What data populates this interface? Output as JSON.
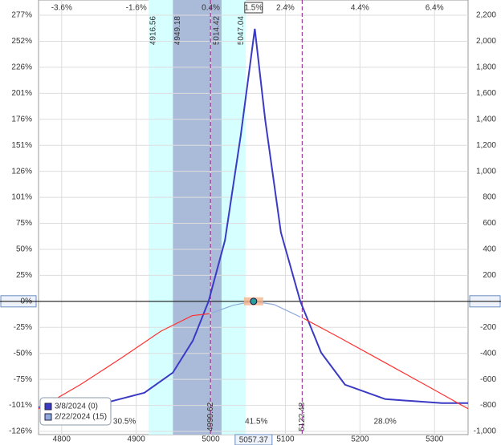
{
  "chart_data": {
    "type": "line",
    "xlim": [
      4769,
      5345
    ],
    "xticks": [
      4800,
      4900,
      5000,
      5100,
      5200,
      5300
    ],
    "top_ticks": [
      {
        "value": 4800,
        "label": "-3.6%"
      },
      {
        "value": 4900,
        "label": "-1.6%"
      },
      {
        "value": 5000,
        "label": "0.4%"
      },
      {
        "value": 5100,
        "label": "2.4%"
      },
      {
        "value": 5200,
        "label": "4.4%"
      },
      {
        "value": 5300,
        "label": "6.4%"
      }
    ],
    "ylim": [
      -1000,
      2200
    ],
    "yticks": [
      {
        "value": 2200,
        "label": "2,200"
      },
      {
        "value": 2000,
        "label": "2,000"
      },
      {
        "value": 1800,
        "label": "1,800"
      },
      {
        "value": 1600,
        "label": "1,600"
      },
      {
        "value": 1400,
        "label": "1,400"
      },
      {
        "value": 1200,
        "label": "1,200"
      },
      {
        "value": 1000,
        "label": "1,000"
      },
      800,
      600,
      400,
      200,
      0,
      -200,
      -400,
      -600,
      -800,
      {
        "value": -1000,
        "label": "-1,000"
      }
    ],
    "pct_ticks": [
      {
        "value": 2200,
        "label": "277%"
      },
      {
        "value": 2000,
        "label": "252%"
      },
      {
        "value": 1800,
        "label": "226%"
      },
      {
        "value": 1600,
        "label": "201%"
      },
      {
        "value": 1400,
        "label": "176%"
      },
      {
        "value": 1200,
        "label": "151%"
      },
      {
        "value": 1000,
        "label": "126%"
      },
      {
        "value": 800,
        "label": "101%"
      },
      {
        "value": 600,
        "label": "75%"
      },
      {
        "value": 400,
        "label": "50%"
      },
      {
        "value": 200,
        "label": "25%"
      },
      {
        "value": 0,
        "label": "0%"
      },
      {
        "value": -200,
        "label": "-25%"
      },
      {
        "value": -400,
        "label": "-50%"
      },
      {
        "value": -600,
        "label": "-75%"
      },
      {
        "value": -800,
        "label": "-101%"
      },
      {
        "value": -1000,
        "label": "-126%"
      }
    ],
    "grid": true,
    "bands": [
      {
        "from": 4916.56,
        "to": 5047.04,
        "color": "#d6ffff"
      },
      {
        "from": 4949.18,
        "to": 5014.42,
        "color": "#aabbd9"
      }
    ],
    "breakevens": [
      4999.62,
      5122.48
    ],
    "breakeven_color": "#8b1a8b",
    "zone_labels": [
      "30.5%",
      "41.5%",
      "28.0%"
    ],
    "current_price": 5057.37,
    "current_change": "1.5%",
    "loss_color": "#ff3030",
    "series": [
      {
        "name": "3/8/2024 (0)",
        "color": "#3a3ac4",
        "x": [
          4769,
          4857,
          4911,
          4949,
          4976,
          4997,
          5019,
          5040,
          5059,
          5073,
          5094,
          5120,
          5148,
          5180,
          5234,
          5310,
          5345
        ],
        "values": [
          -814,
          -783,
          -703,
          -549,
          -302,
          0,
          469,
          1270,
          2096,
          1393,
          530,
          0,
          -395,
          -641,
          -752,
          -783,
          -783
        ]
      },
      {
        "name": "2/22/2024 (15)",
        "color": "#8faadc",
        "x": [
          4769,
          4825,
          4879,
          4933,
          4975,
          4998,
          5001,
          5030,
          5057,
          5085,
          5120,
          5124,
          5170,
          5230,
          5290,
          5345
        ],
        "values": [
          -827,
          -641,
          -440,
          -230,
          -110,
          -95,
          -90,
          -30,
          0,
          -25,
          -120,
          -130,
          -271,
          -460,
          -650,
          -826
        ]
      }
    ]
  }
}
